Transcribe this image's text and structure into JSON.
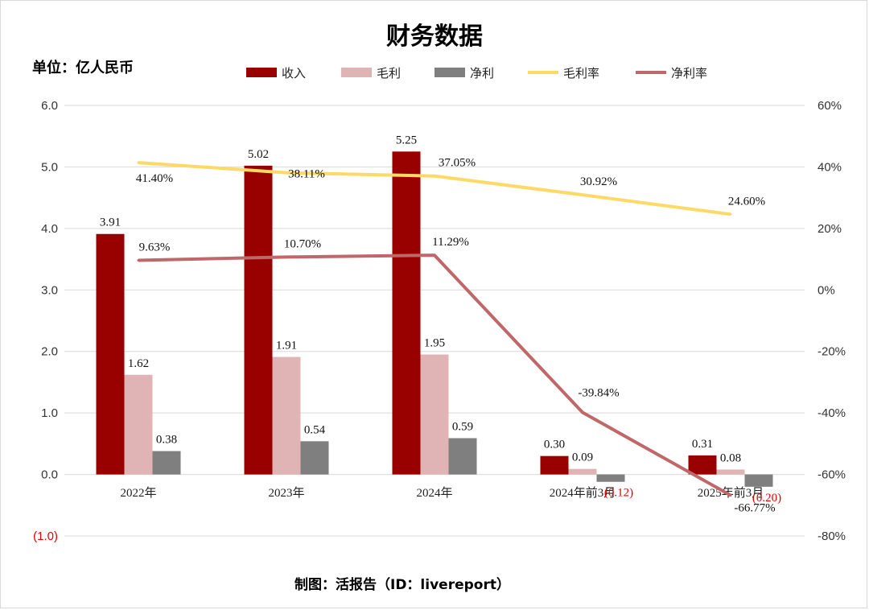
{
  "title": "财务数据",
  "unit_label": "单位：亿人民币",
  "source": "制图：活报告（ID：livereport）",
  "chart_data": {
    "type": "bar",
    "categories": [
      "2022年",
      "2023年",
      "2024年",
      "2024年前3月",
      "2025年前3月"
    ],
    "series": [
      {
        "name": "收入",
        "kind": "bar",
        "axis": "left",
        "color": "#990000",
        "values": [
          3.91,
          5.02,
          5.25,
          0.3,
          0.31
        ],
        "labels": [
          "3.91",
          "5.02",
          "5.25",
          "0.30",
          "0.31"
        ]
      },
      {
        "name": "毛利",
        "kind": "bar",
        "axis": "left",
        "color": "#e0b4b4",
        "values": [
          1.62,
          1.91,
          1.95,
          0.09,
          0.08
        ],
        "labels": [
          "1.62",
          "1.91",
          "1.95",
          "0.09",
          "0.08"
        ]
      },
      {
        "name": "净利",
        "kind": "bar",
        "axis": "left",
        "color": "#7f7f7f",
        "values": [
          0.38,
          0.54,
          0.59,
          -0.12,
          -0.2
        ],
        "labels": [
          "0.38",
          "0.54",
          "0.59",
          "(0.12)",
          "(0.20)"
        ]
      },
      {
        "name": "毛利率",
        "kind": "line",
        "axis": "right",
        "color": "#ffd966",
        "values": [
          41.4,
          38.11,
          37.05,
          30.92,
          24.6
        ],
        "labels": [
          "41.40%",
          "38.11%",
          "37.05%",
          "30.92%",
          "24.60%"
        ]
      },
      {
        "name": "净利率",
        "kind": "line",
        "axis": "right",
        "color": "#c0676a",
        "values": [
          9.63,
          10.7,
          11.29,
          -39.84,
          -66.77
        ],
        "labels": [
          "9.63%",
          "10.70%",
          "11.29%",
          "-39.84%",
          "-66.77%"
        ]
      }
    ],
    "y_left": {
      "min": -1.0,
      "max": 6.0,
      "step": 1.0,
      "ticks": [
        "(1.0)",
        "0.0",
        "1.0",
        "2.0",
        "3.0",
        "4.0",
        "5.0",
        "6.0"
      ]
    },
    "y_right": {
      "min": -80,
      "max": 60,
      "step": 20,
      "ticks": [
        "-80%",
        "-60%",
        "-40%",
        "-20%",
        "0%",
        "20%",
        "40%",
        "60%"
      ]
    },
    "grid": true,
    "legend_position": "top"
  }
}
